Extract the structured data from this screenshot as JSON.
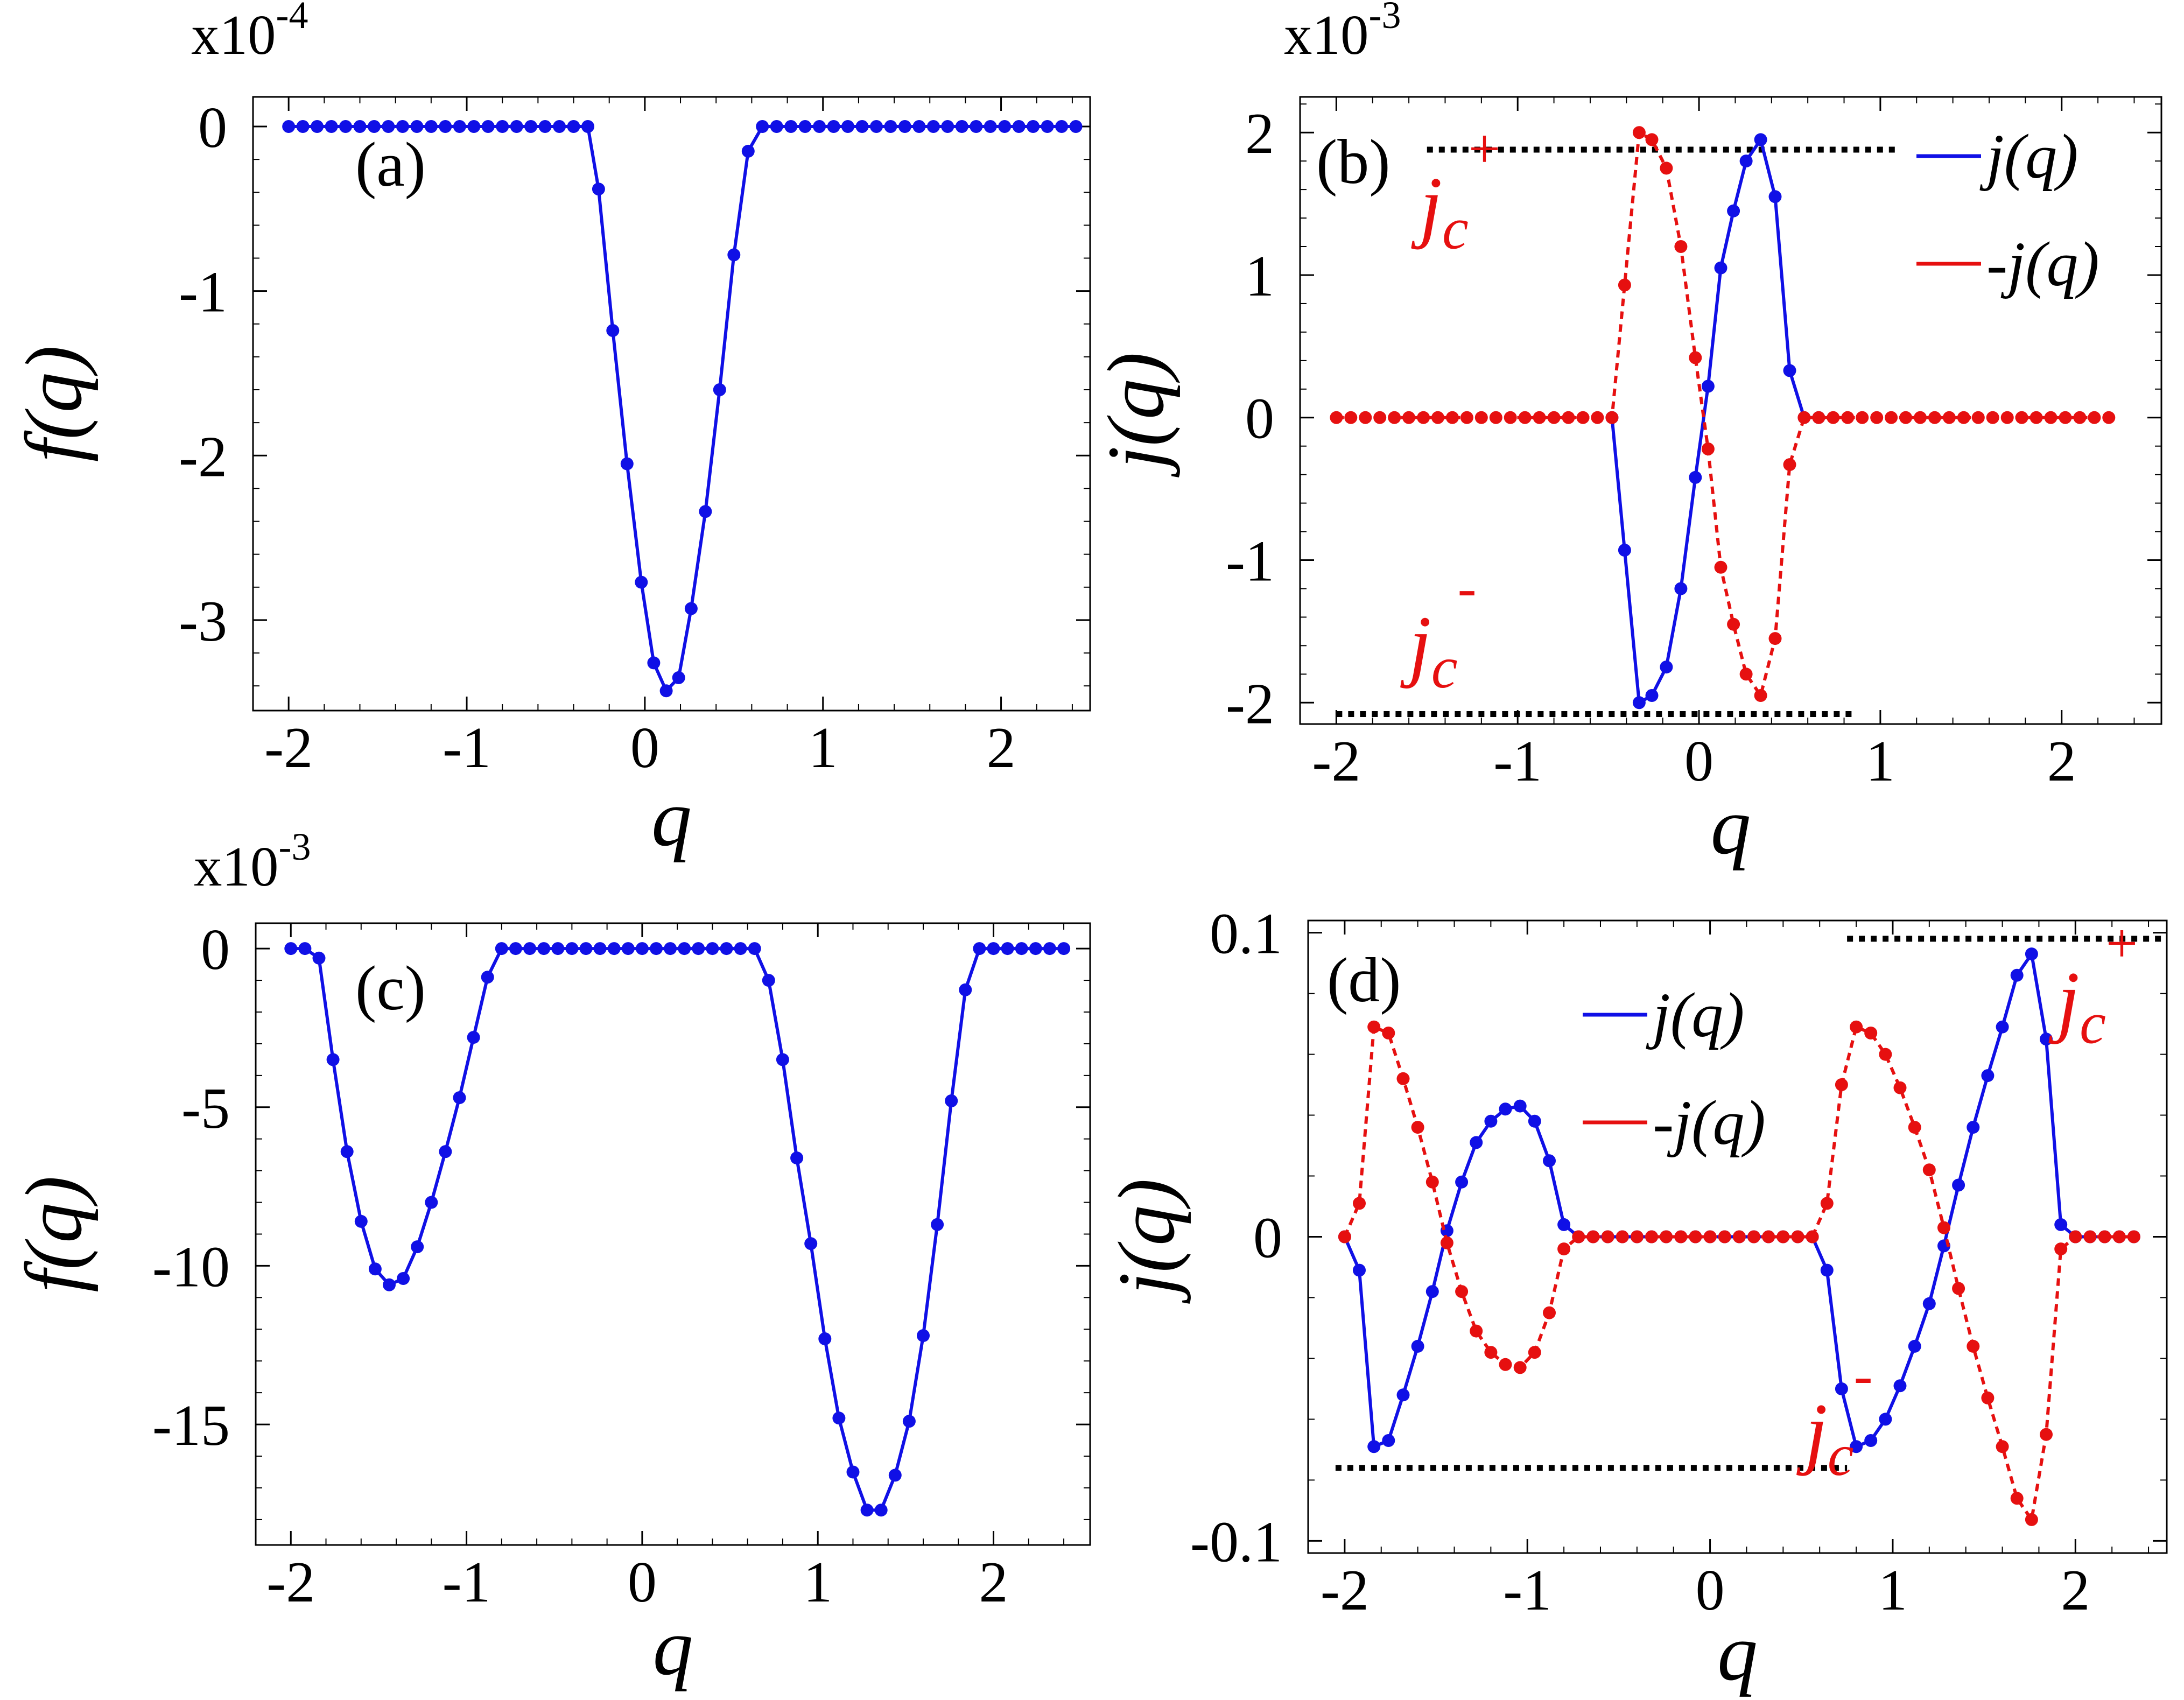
{
  "chart_data": [
    {
      "id": "a",
      "type": "line",
      "panel_label": "(a)",
      "multiplier_label": "x10",
      "multiplier_exp": "-4",
      "xlabel": "q",
      "ylabel": "f(q)",
      "xlim": [
        -2.2,
        2.5
      ],
      "ylim": [
        -3.55,
        0.18
      ],
      "xticks": [
        {
          "v": -2,
          "label": "-2"
        },
        {
          "v": -1,
          "label": "-1"
        },
        {
          "v": 0,
          "label": "0"
        },
        {
          "v": 1,
          "label": "1"
        },
        {
          "v": 2,
          "label": "2"
        }
      ],
      "yticks": [
        {
          "v": 0,
          "label": "0"
        },
        {
          "v": -1,
          "label": "-1"
        },
        {
          "v": -2,
          "label": "-2"
        },
        {
          "v": -3,
          "label": "-3"
        }
      ],
      "series": [
        {
          "color": "#1010e6",
          "dash": "",
          "x": [
            -2.0,
            -1.92,
            -1.84,
            -1.76,
            -1.68,
            -1.6,
            -1.52,
            -1.44,
            -1.36,
            -1.28,
            -1.2,
            -1.12,
            -1.04,
            -0.96,
            -0.88,
            -0.8,
            -0.72,
            -0.64,
            -0.56,
            -0.48,
            -0.4,
            -0.32,
            -0.26,
            -0.18,
            -0.1,
            -0.02,
            0.05,
            0.12,
            0.19,
            0.26,
            0.34,
            0.42,
            0.5,
            0.58,
            0.66,
            0.74,
            0.82,
            0.9,
            0.98,
            1.06,
            1.14,
            1.22,
            1.3,
            1.38,
            1.46,
            1.54,
            1.62,
            1.7,
            1.78,
            1.86,
            1.94,
            2.02,
            2.1,
            2.18,
            2.26,
            2.34,
            2.42
          ],
          "y": [
            0,
            0,
            0,
            0,
            0,
            0,
            0,
            0,
            0,
            0,
            0,
            0,
            0,
            0,
            0,
            0,
            0,
            0,
            0,
            0,
            0,
            0,
            -0.38,
            -1.24,
            -2.05,
            -2.77,
            -3.26,
            -3.43,
            -3.35,
            -2.93,
            -2.34,
            -1.6,
            -0.78,
            -0.15,
            0,
            0,
            0,
            0,
            0,
            0,
            0,
            0,
            0,
            0,
            0,
            0,
            0,
            0,
            0,
            0,
            0,
            0,
            0,
            0,
            0,
            0,
            0
          ]
        }
      ]
    },
    {
      "id": "b",
      "type": "line",
      "panel_label": "(b)",
      "multiplier_label": "x10",
      "multiplier_exp": "-3",
      "xlabel": "q",
      "ylabel": "j(q)",
      "xlim": [
        -2.2,
        2.55
      ],
      "ylim": [
        -2.15,
        2.25
      ],
      "xticks": [
        {
          "v": -2,
          "label": "-2"
        },
        {
          "v": -1,
          "label": "-1"
        },
        {
          "v": 0,
          "label": "0"
        },
        {
          "v": 1,
          "label": "1"
        },
        {
          "v": 2,
          "label": "2"
        }
      ],
      "yticks": [
        {
          "v": 2,
          "label": "2"
        },
        {
          "v": 1,
          "label": "1"
        },
        {
          "v": 0,
          "label": "0"
        },
        {
          "v": -1,
          "label": "-1"
        },
        {
          "v": -2,
          "label": "-2"
        }
      ],
      "legend": [
        {
          "label": "j(q)",
          "color": "#1010e6"
        },
        {
          "label": "-j(q)",
          "color": "#e61010"
        }
      ],
      "annotations": [
        {
          "main": "j",
          "sub": "c",
          "sup": "+",
          "x": -1.54,
          "y": 1.3
        },
        {
          "main": "j",
          "sub": "c",
          "sup": "-",
          "x": -1.6,
          "y": -1.78
        }
      ],
      "ref_lines": [
        {
          "x1": -1.5,
          "x2": 1.1,
          "y": 1.88
        },
        {
          "x1": -2.0,
          "x2": 0.85,
          "y": -2.08
        }
      ],
      "series": [
        {
          "color": "#1010e6",
          "dash": "",
          "x": [
            -0.48,
            -0.41,
            -0.33,
            -0.26,
            -0.18,
            -0.1,
            -0.02,
            0.05,
            0.12,
            0.19,
            0.26,
            0.34,
            0.42,
            0.5,
            0.58,
            0.66
          ],
          "y": [
            0,
            -0.93,
            -2.0,
            -1.95,
            -1.75,
            -1.2,
            -0.42,
            0.22,
            1.05,
            1.45,
            1.8,
            1.95,
            1.55,
            0.33,
            0,
            0
          ]
        },
        {
          "color": "#e61010",
          "dash": "14,10",
          "x": [
            -2.0,
            -1.92,
            -1.84,
            -1.76,
            -1.68,
            -1.6,
            -1.52,
            -1.44,
            -1.36,
            -1.28,
            -1.2,
            -1.12,
            -1.04,
            -0.96,
            -0.88,
            -0.8,
            -0.72,
            -0.64,
            -0.56,
            -0.48,
            -0.41,
            -0.33,
            -0.26,
            -0.18,
            -0.1,
            -0.02,
            0.05,
            0.12,
            0.19,
            0.26,
            0.34,
            0.42,
            0.5,
            0.58,
            0.66,
            0.74,
            0.82,
            0.9,
            0.98,
            1.06,
            1.14,
            1.22,
            1.3,
            1.38,
            1.46,
            1.54,
            1.62,
            1.7,
            1.78,
            1.86,
            1.94,
            2.02,
            2.1,
            2.18,
            2.26
          ],
          "y": [
            0,
            0,
            0,
            0,
            0,
            0,
            0,
            0,
            0,
            0,
            0,
            0,
            0,
            0,
            0,
            0,
            0,
            0,
            0,
            0,
            0.93,
            2.0,
            1.95,
            1.75,
            1.2,
            0.42,
            -0.22,
            -1.05,
            -1.45,
            -1.8,
            -1.95,
            -1.55,
            -0.33,
            0,
            0,
            0,
            0,
            0,
            0,
            0,
            0,
            0,
            0,
            0,
            0,
            0,
            0,
            0,
            0,
            0,
            0,
            0,
            0,
            0,
            0
          ]
        }
      ]
    },
    {
      "id": "c",
      "type": "line",
      "panel_label": "(c)",
      "multiplier_label": "x10",
      "multiplier_exp": "-3",
      "xlabel": "q",
      "ylabel": "f(q)",
      "xlim": [
        -2.2,
        2.55
      ],
      "ylim": [
        -18.8,
        0.8
      ],
      "xticks": [
        {
          "v": -2,
          "label": "-2"
        },
        {
          "v": -1,
          "label": "-1"
        },
        {
          "v": 0,
          "label": "0"
        },
        {
          "v": 1,
          "label": "1"
        },
        {
          "v": 2,
          "label": "2"
        }
      ],
      "yticks": [
        {
          "v": 0,
          "label": "0"
        },
        {
          "v": -5,
          "label": "-5"
        },
        {
          "v": -10,
          "label": "-10"
        },
        {
          "v": -15,
          "label": "-15"
        }
      ],
      "series": [
        {
          "color": "#1010e6",
          "dash": "",
          "x": [
            -2.0,
            -1.92,
            -1.84,
            -1.76,
            -1.68,
            -1.6,
            -1.52,
            -1.44,
            -1.36,
            -1.28,
            -1.2,
            -1.12,
            -1.04,
            -0.96,
            -0.88,
            -0.8,
            -0.72,
            -0.64,
            -0.56,
            -0.48,
            -0.4,
            -0.32,
            -0.24,
            -0.16,
            -0.08,
            0.0,
            0.08,
            0.16,
            0.24,
            0.32,
            0.4,
            0.48,
            0.56,
            0.64,
            0.72,
            0.8,
            0.88,
            0.96,
            1.04,
            1.12,
            1.2,
            1.28,
            1.36,
            1.44,
            1.52,
            1.6,
            1.68,
            1.76,
            1.84,
            1.92,
            2.0,
            2.08,
            2.16,
            2.24,
            2.32,
            2.4
          ],
          "y": [
            0,
            0,
            -0.3,
            -3.5,
            -6.4,
            -8.6,
            -10.1,
            -10.6,
            -10.4,
            -9.4,
            -8.0,
            -6.4,
            -4.7,
            -2.8,
            -0.9,
            0,
            0,
            0,
            0,
            0,
            0,
            0,
            0,
            0,
            0,
            0,
            0,
            0,
            0,
            0,
            0,
            0,
            0,
            0,
            -1.0,
            -3.5,
            -6.6,
            -9.3,
            -12.3,
            -14.8,
            -16.5,
            -17.7,
            -17.7,
            -16.6,
            -14.9,
            -12.2,
            -8.7,
            -4.8,
            -1.3,
            0,
            0,
            0,
            0,
            0,
            0,
            0
          ]
        }
      ]
    },
    {
      "id": "d",
      "type": "line",
      "panel_label": "(d)",
      "xlabel": "q",
      "ylabel": "j(q)",
      "xlim": [
        -2.2,
        2.5
      ],
      "ylim": [
        -0.104,
        0.104
      ],
      "xticks": [
        {
          "v": -2,
          "label": "-2"
        },
        {
          "v": -1,
          "label": "-1"
        },
        {
          "v": 0,
          "label": "0"
        },
        {
          "v": 1,
          "label": "1"
        },
        {
          "v": 2,
          "label": "2"
        }
      ],
      "yticks": [
        {
          "v": 0.1,
          "label": "0.1"
        },
        {
          "v": 0,
          "label": "0"
        },
        {
          "v": -0.1,
          "label": "-0.1"
        }
      ],
      "legend": [
        {
          "label": "j(q)",
          "color": "#1010e6"
        },
        {
          "label": "-j(q)",
          "color": "#e61010"
        }
      ],
      "annotations": [
        {
          "main": "j",
          "sub": "c",
          "sup": "+",
          "x": 1.9,
          "y": 0.069
        },
        {
          "main": "j",
          "sub": "c",
          "sup": "-",
          "x": 0.52,
          "y": -0.073
        }
      ],
      "ref_lines": [
        {
          "x1": 0.75,
          "x2": 2.5,
          "y": 0.098
        },
        {
          "x1": -2.05,
          "x2": 0.75,
          "y": -0.076
        }
      ],
      "series": [
        {
          "color": "#1010e6",
          "dash": "",
          "x": [
            -2.0,
            -1.92,
            -1.84,
            -1.76,
            -1.68,
            -1.6,
            -1.52,
            -1.44,
            -1.36,
            -1.28,
            -1.2,
            -1.12,
            -1.04,
            -0.96,
            -0.88,
            -0.8,
            -0.72,
            -0.64,
            -0.56,
            -0.48,
            -0.4,
            -0.32,
            -0.24,
            -0.16,
            -0.08,
            0.0,
            0.08,
            0.16,
            0.24,
            0.32,
            0.4,
            0.48,
            0.56,
            0.64,
            0.72,
            0.8,
            0.88,
            0.96,
            1.04,
            1.12,
            1.2,
            1.28,
            1.36,
            1.44,
            1.52,
            1.6,
            1.68,
            1.76,
            1.84,
            1.92,
            2.0,
            2.08,
            2.16,
            2.24,
            2.32
          ],
          "y": [
            0,
            -0.011,
            -0.069,
            -0.067,
            -0.052,
            -0.036,
            -0.018,
            0.002,
            0.018,
            0.031,
            0.038,
            0.042,
            0.043,
            0.038,
            0.025,
            0.004,
            0,
            0,
            0,
            0,
            0,
            0,
            0,
            0,
            0,
            0,
            0,
            0,
            0,
            0,
            0,
            0,
            0,
            -0.011,
            -0.05,
            -0.069,
            -0.067,
            -0.06,
            -0.049,
            -0.036,
            -0.022,
            -0.003,
            0.017,
            0.036,
            0.053,
            0.069,
            0.086,
            0.093,
            0.065,
            0.004,
            0,
            0,
            0,
            0,
            0
          ]
        },
        {
          "color": "#e61010",
          "dash": "14,10",
          "x": [
            -2.0,
            -1.92,
            -1.84,
            -1.76,
            -1.68,
            -1.6,
            -1.52,
            -1.44,
            -1.36,
            -1.28,
            -1.2,
            -1.12,
            -1.04,
            -0.96,
            -0.88,
            -0.8,
            -0.72,
            -0.64,
            -0.56,
            -0.48,
            -0.4,
            -0.32,
            -0.24,
            -0.16,
            -0.08,
            0.0,
            0.08,
            0.16,
            0.24,
            0.32,
            0.4,
            0.48,
            0.56,
            0.64,
            0.72,
            0.8,
            0.88,
            0.96,
            1.04,
            1.12,
            1.2,
            1.28,
            1.36,
            1.44,
            1.52,
            1.6,
            1.68,
            1.76,
            1.84,
            1.92,
            2.0,
            2.08,
            2.16,
            2.24,
            2.32
          ],
          "y": [
            0,
            0.011,
            0.069,
            0.067,
            0.052,
            0.036,
            0.018,
            -0.002,
            -0.018,
            -0.031,
            -0.038,
            -0.042,
            -0.043,
            -0.038,
            -0.025,
            -0.004,
            0,
            0,
            0,
            0,
            0,
            0,
            0,
            0,
            0,
            0,
            0,
            0,
            0,
            0,
            0,
            0,
            0,
            0.011,
            0.05,
            0.069,
            0.067,
            0.06,
            0.049,
            0.036,
            0.022,
            0.003,
            -0.017,
            -0.036,
            -0.053,
            -0.069,
            -0.086,
            -0.093,
            -0.065,
            -0.004,
            0,
            0,
            0,
            0,
            0
          ]
        }
      ]
    }
  ]
}
